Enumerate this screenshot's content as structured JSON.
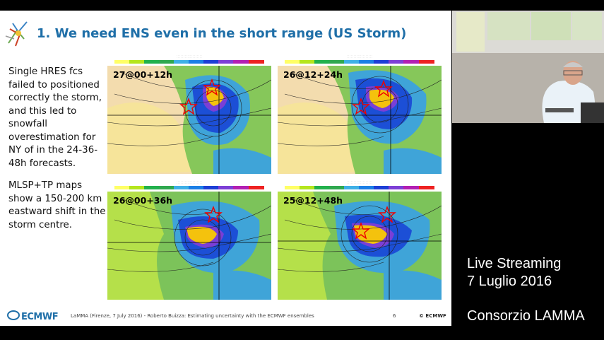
{
  "slide": {
    "title": "1. We need ENS even in the short range (US Storm)",
    "paragraph1": "Single HRES fcs failed to positioned correctly the storm, and this led to snowfall overestimation for NY of in the 24-36-48h forecasts.",
    "paragraph2": "MLSP+TP maps show a 150-200 km eastward shift in the storm centre.",
    "maps": [
      {
        "label": "27@00+12h"
      },
      {
        "label": "26@12+24h"
      },
      {
        "label": "26@00+36h"
      },
      {
        "label": "25@12+48h"
      }
    ],
    "footer": {
      "logo": "ECMWF",
      "text": "LaMMA (Firenze, 7 July 2016) - Roberto Buizza: Estimating uncertainty with the ECMWF ensembles",
      "page": "6",
      "copyright": "© ECMWF"
    }
  },
  "overlay": {
    "line1": "Live Streaming",
    "line2": "7 Luglio 2016",
    "line3": "Consorzio LAMMA"
  },
  "colors": {
    "title": "#1f6fa8",
    "background": "#000000"
  }
}
